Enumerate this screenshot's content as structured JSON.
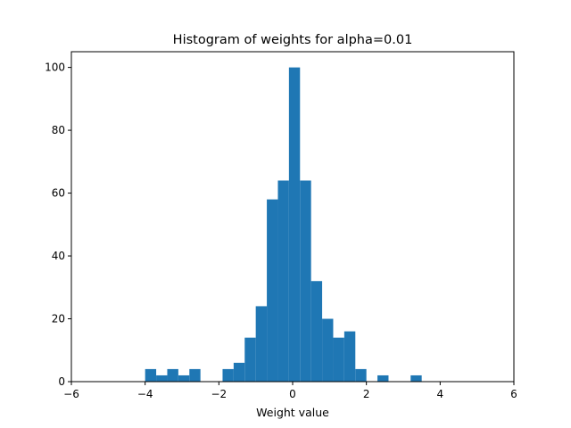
{
  "chart_data": {
    "type": "bar",
    "title": "Histogram of weights for alpha=0.01",
    "xlabel": "Weight value",
    "ylabel": "",
    "xlim": [
      -6,
      6
    ],
    "ylim": [
      0,
      105
    ],
    "xticks": [
      -6,
      -4,
      -2,
      0,
      2,
      4,
      6
    ],
    "yticks": [
      0,
      20,
      40,
      60,
      80,
      100
    ],
    "bar_color": "#1f77b4",
    "grid": false,
    "bins": [
      {
        "x0": -4.0,
        "x1": -3.7,
        "count": 4
      },
      {
        "x0": -3.7,
        "x1": -3.4,
        "count": 2
      },
      {
        "x0": -3.4,
        "x1": -3.1,
        "count": 4
      },
      {
        "x0": -3.1,
        "x1": -2.8,
        "count": 2
      },
      {
        "x0": -2.8,
        "x1": -2.5,
        "count": 4
      },
      {
        "x0": -2.5,
        "x1": -2.2,
        "count": 0
      },
      {
        "x0": -2.2,
        "x1": -1.9,
        "count": 0
      },
      {
        "x0": -1.9,
        "x1": -1.6,
        "count": 4
      },
      {
        "x0": -1.6,
        "x1": -1.3,
        "count": 6
      },
      {
        "x0": -1.3,
        "x1": -1.0,
        "count": 14
      },
      {
        "x0": -1.0,
        "x1": -0.7,
        "count": 24
      },
      {
        "x0": -0.7,
        "x1": -0.4,
        "count": 58
      },
      {
        "x0": -0.4,
        "x1": -0.1,
        "count": 64
      },
      {
        "x0": -0.1,
        "x1": 0.2,
        "count": 100
      },
      {
        "x0": 0.2,
        "x1": 0.5,
        "count": 64
      },
      {
        "x0": 0.5,
        "x1": 0.8,
        "count": 32
      },
      {
        "x0": 0.8,
        "x1": 1.1,
        "count": 20
      },
      {
        "x0": 1.1,
        "x1": 1.4,
        "count": 14
      },
      {
        "x0": 1.4,
        "x1": 1.7,
        "count": 16
      },
      {
        "x0": 1.7,
        "x1": 2.0,
        "count": 4
      },
      {
        "x0": 2.0,
        "x1": 2.3,
        "count": 0
      },
      {
        "x0": 2.3,
        "x1": 2.6,
        "count": 2
      },
      {
        "x0": 2.6,
        "x1": 2.9,
        "count": 0
      },
      {
        "x0": 2.9,
        "x1": 3.2,
        "count": 0
      },
      {
        "x0": 3.2,
        "x1": 3.5,
        "count": 2
      }
    ]
  }
}
